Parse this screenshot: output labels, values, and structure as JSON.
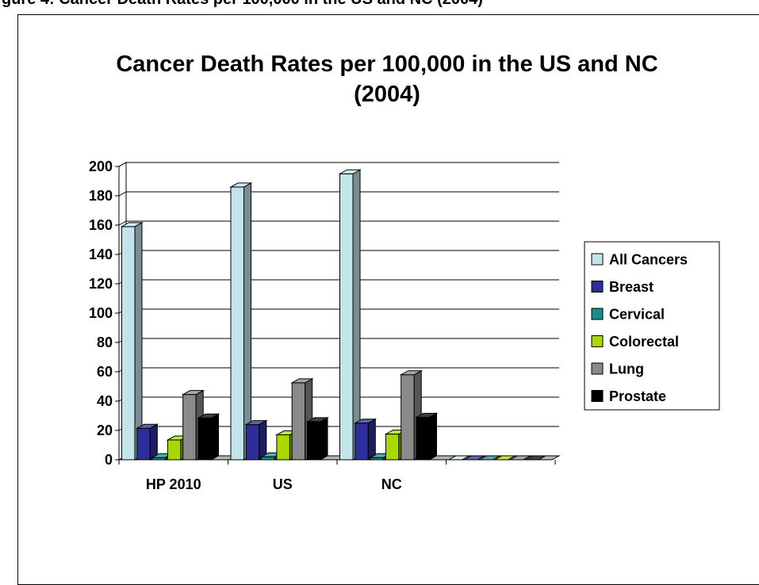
{
  "page": {
    "caption": "gure 4: Cancer Death Rates per 100,000 in the US and NC (2004)"
  },
  "chart_data": {
    "type": "bar",
    "title": [
      "Cancer Death Rates per 100,000 in the US and NC",
      "(2004)"
    ],
    "categories": [
      "HP 2010",
      "US",
      "NC",
      ""
    ],
    "series": [
      {
        "name": "All Cancers",
        "color": "#c4e4ec",
        "values": [
          159,
          186,
          195,
          0
        ]
      },
      {
        "name": "Breast",
        "color": "#2e2e9a",
        "values": [
          21.5,
          24,
          25,
          0
        ]
      },
      {
        "name": "Cervical",
        "color": "#1a8c8c",
        "values": [
          1.5,
          2,
          1.5,
          0
        ]
      },
      {
        "name": "Colorectal",
        "color": "#a8d800",
        "values": [
          13.5,
          17,
          17.5,
          0
        ]
      },
      {
        "name": "Lung",
        "color": "#8a8a8a",
        "values": [
          44.5,
          52.5,
          58,
          0
        ]
      },
      {
        "name": "Prostate",
        "color": "#000000",
        "values": [
          28.5,
          26,
          29,
          0
        ]
      }
    ],
    "ylim": [
      0,
      200
    ],
    "yticks": [
      "0",
      "20",
      "40",
      "60",
      "80",
      "100",
      "120",
      "140",
      "160",
      "180",
      "200"
    ],
    "grid": true,
    "legend_position": "right",
    "style": "3d-column"
  }
}
